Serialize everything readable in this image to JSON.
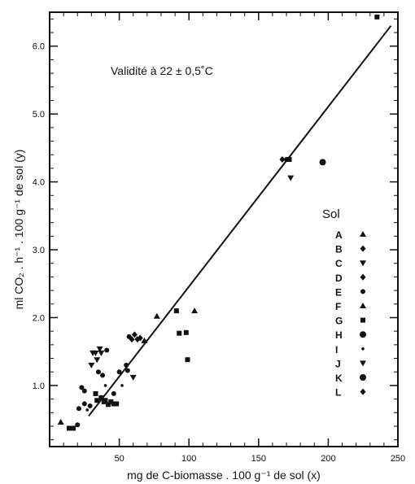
{
  "chart_data": {
    "type": "scatter",
    "title": "",
    "annotation": "Validité à 22 ± 0,5˚C",
    "xlabel": "mg de C-biomasse . 100 g⁻¹ de sol (x)",
    "ylabel": "ml CO₂ . h⁻¹ . 100 g⁻¹ de sol (y)",
    "xlim": [
      0,
      250
    ],
    "ylim": [
      0.1,
      6.5
    ],
    "x_ticks": [
      50,
      100,
      150,
      200,
      250
    ],
    "y_ticks": [
      1.0,
      2.0,
      3.0,
      4.0,
      5.0,
      6.0
    ],
    "x_tick_labels": [
      "50",
      "100",
      "150",
      "200",
      "250"
    ],
    "y_tick_labels": [
      "1.0",
      "2.0",
      "3.0",
      "4.0",
      "5.0",
      "6.0"
    ],
    "grid": false,
    "legend": {
      "title": "Sol",
      "placement": "right",
      "entries": [
        {
          "label": "A",
          "marker": "triangle-up"
        },
        {
          "label": "B",
          "marker": "diamond"
        },
        {
          "label": "C",
          "marker": "triangle-down"
        },
        {
          "label": "D",
          "marker": "diamond"
        },
        {
          "label": "E",
          "marker": "circle"
        },
        {
          "label": "F",
          "marker": "triangle-up"
        },
        {
          "label": "G",
          "marker": "square"
        },
        {
          "label": "H",
          "marker": "circle-large"
        },
        {
          "label": "I",
          "marker": "dot"
        },
        {
          "label": "J",
          "marker": "triangle-down"
        },
        {
          "label": "K",
          "marker": "circle-large"
        },
        {
          "label": "L",
          "marker": "diamond"
        }
      ]
    },
    "regression_line": {
      "x": [
        28,
        245
      ],
      "y": [
        0.55,
        6.3
      ]
    },
    "points": [
      {
        "x": 8,
        "y": 0.46,
        "marker": "triangle-up"
      },
      {
        "x": 14,
        "y": 0.37,
        "marker": "square"
      },
      {
        "x": 17,
        "y": 0.37,
        "marker": "square"
      },
      {
        "x": 20,
        "y": 0.42,
        "marker": "circle"
      },
      {
        "x": 21,
        "y": 0.66,
        "marker": "circle"
      },
      {
        "x": 23,
        "y": 0.97,
        "marker": "circle"
      },
      {
        "x": 25,
        "y": 0.92,
        "marker": "circle"
      },
      {
        "x": 25,
        "y": 0.73,
        "marker": "circle"
      },
      {
        "x": 27,
        "y": 0.64,
        "marker": "dot"
      },
      {
        "x": 29,
        "y": 0.7,
        "marker": "circle"
      },
      {
        "x": 30,
        "y": 1.3,
        "marker": "triangle-down"
      },
      {
        "x": 31,
        "y": 1.48,
        "marker": "triangle-down"
      },
      {
        "x": 33,
        "y": 1.48,
        "marker": "triangle-down"
      },
      {
        "x": 34,
        "y": 1.38,
        "marker": "triangle-down"
      },
      {
        "x": 36,
        "y": 1.54,
        "marker": "triangle-down"
      },
      {
        "x": 33,
        "y": 0.88,
        "marker": "square"
      },
      {
        "x": 34,
        "y": 0.78,
        "marker": "square"
      },
      {
        "x": 35,
        "y": 1.2,
        "marker": "circle"
      },
      {
        "x": 37,
        "y": 1.48,
        "marker": "triangle-down"
      },
      {
        "x": 37,
        "y": 0.82,
        "marker": "square"
      },
      {
        "x": 38,
        "y": 1.15,
        "marker": "circle"
      },
      {
        "x": 39,
        "y": 0.76,
        "marker": "square"
      },
      {
        "x": 40,
        "y": 0.78,
        "marker": "square"
      },
      {
        "x": 40,
        "y": 1.0,
        "marker": "dot"
      },
      {
        "x": 41,
        "y": 1.52,
        "marker": "circle"
      },
      {
        "x": 42,
        "y": 0.72,
        "marker": "square"
      },
      {
        "x": 44,
        "y": 0.76,
        "marker": "square"
      },
      {
        "x": 46,
        "y": 0.73,
        "marker": "square"
      },
      {
        "x": 46,
        "y": 0.88,
        "marker": "circle"
      },
      {
        "x": 48,
        "y": 0.73,
        "marker": "square"
      },
      {
        "x": 50,
        "y": 1.2,
        "marker": "circle"
      },
      {
        "x": 52,
        "y": 1.0,
        "marker": "dot"
      },
      {
        "x": 55,
        "y": 1.3,
        "marker": "circle"
      },
      {
        "x": 56,
        "y": 1.22,
        "marker": "circle"
      },
      {
        "x": 57,
        "y": 1.72,
        "marker": "circle"
      },
      {
        "x": 59,
        "y": 1.68,
        "marker": "diamond"
      },
      {
        "x": 60,
        "y": 1.12,
        "marker": "triangle-down"
      },
      {
        "x": 61,
        "y": 1.75,
        "marker": "diamond"
      },
      {
        "x": 63,
        "y": 1.68,
        "marker": "diamond"
      },
      {
        "x": 65,
        "y": 1.7,
        "marker": "diamond"
      },
      {
        "x": 68,
        "y": 1.66,
        "marker": "triangle-up"
      },
      {
        "x": 77,
        "y": 2.02,
        "marker": "triangle-up"
      },
      {
        "x": 91,
        "y": 2.1,
        "marker": "square"
      },
      {
        "x": 93,
        "y": 1.77,
        "marker": "square"
      },
      {
        "x": 98,
        "y": 1.78,
        "marker": "square"
      },
      {
        "x": 99,
        "y": 1.38,
        "marker": "square"
      },
      {
        "x": 104,
        "y": 2.1,
        "marker": "triangle-up"
      },
      {
        "x": 167,
        "y": 4.33,
        "marker": "diamond"
      },
      {
        "x": 170,
        "y": 4.33,
        "marker": "circle"
      },
      {
        "x": 172,
        "y": 4.33,
        "marker": "square"
      },
      {
        "x": 173,
        "y": 4.06,
        "marker": "triangle-down"
      },
      {
        "x": 196,
        "y": 4.29,
        "marker": "circle-large"
      },
      {
        "x": 235,
        "y": 6.43,
        "marker": "square"
      }
    ]
  }
}
